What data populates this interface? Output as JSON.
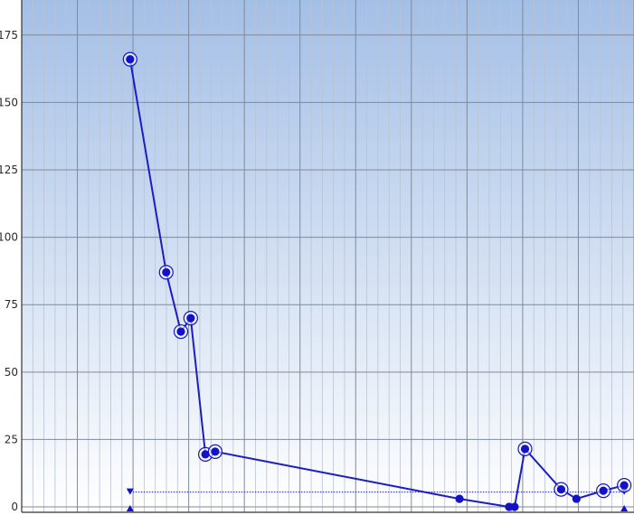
{
  "colors": {
    "plot_top": "#a4bfe6",
    "plot_bottom": "#ffffff",
    "grid_major": "#7f8a99",
    "grid_minor": "#b9c3d3",
    "series": "#1d1dc4",
    "marker": "#1212c8",
    "axis": "#333333"
  },
  "chart_data": {
    "type": "line",
    "title": "",
    "xlabel": "",
    "ylabel": "",
    "ylim": [
      -2,
      188
    ],
    "xlim": [
      0,
      100
    ],
    "yticks": [
      0,
      25,
      50,
      75,
      100,
      125,
      150,
      175
    ],
    "ytick_labels": [
      "0",
      "25",
      "50",
      "75",
      "100",
      "125",
      "150",
      "175"
    ],
    "grid": true,
    "legend": "none",
    "series": [
      {
        "x": [
          17.7,
          23.6,
          26.0,
          27.6,
          30.0,
          31.6,
          71.5,
          79.6,
          80.5,
          82.2,
          88.1,
          90.6,
          95.0,
          98.4
        ],
        "y": [
          166,
          87,
          65,
          70,
          19.5,
          20.5,
          3,
          0,
          0,
          21.5,
          6.5,
          3,
          6,
          8
        ],
        "ringed": [
          true,
          true,
          true,
          true,
          true,
          true,
          false,
          false,
          false,
          true,
          true,
          false,
          true,
          true
        ]
      }
    ],
    "control_line": {
      "y": 5.5,
      "x_start": 17.7,
      "x_end": 98.4
    },
    "bottom_markers_x": [
      17.7,
      98.4
    ]
  }
}
